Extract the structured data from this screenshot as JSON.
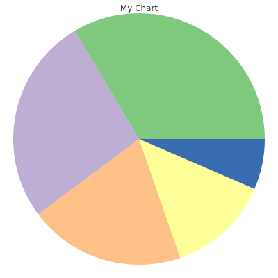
{
  "chart_data": {
    "type": "pie",
    "title": "My Chart",
    "start_angle_deg": 0,
    "direction": "clockwise",
    "slices": [
      {
        "value": 6.5,
        "color": "#386cb0"
      },
      {
        "value": 13.2,
        "color": "#ffff99"
      },
      {
        "value": 20.1,
        "color": "#fdc086"
      },
      {
        "value": 26.7,
        "color": "#beaed4"
      },
      {
        "value": 33.5,
        "color": "#7fc97f"
      }
    ]
  }
}
